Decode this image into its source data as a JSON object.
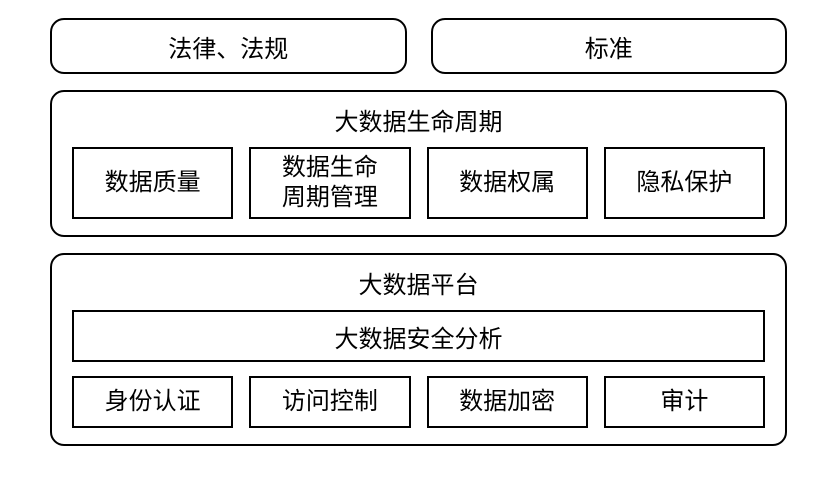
{
  "diagram": {
    "type": "block-diagram",
    "background_color": "#ffffff",
    "border_color": "#000000",
    "text_color": "#000000",
    "border_width": 2,
    "outer_border_radius": 14,
    "inner_border_radius": 0,
    "font_family": "SimSun",
    "title_fontsize": 24,
    "item_fontsize": 24
  },
  "top": {
    "left": "法律、法规",
    "right": "标准"
  },
  "lifecycle": {
    "title": "大数据生命周期",
    "items": [
      "数据质量",
      "数据生命\n周期管理",
      "数据权属",
      "隐私保护"
    ]
  },
  "platform": {
    "title": "大数据平台",
    "security": "大数据安全分析",
    "items": [
      "身份认证",
      "访问控制",
      "数据加密",
      "审计"
    ]
  }
}
